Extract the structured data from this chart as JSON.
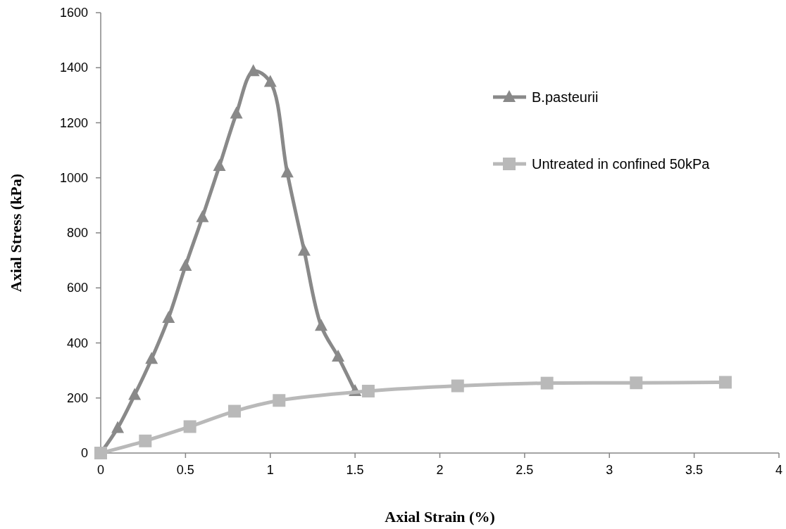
{
  "chart_data": {
    "type": "line",
    "xlabel": "Axial Strain (%)",
    "ylabel": "Axial Stress (kPa)",
    "xlim": [
      0,
      4
    ],
    "xticks": [
      0,
      0.5,
      1,
      1.5,
      2,
      2.5,
      3,
      3.5,
      4
    ],
    "ylim": [
      0,
      1600
    ],
    "yticks": [
      0,
      200,
      400,
      600,
      800,
      1000,
      1200,
      1400,
      1600
    ],
    "grid": false,
    "legend": "top right",
    "series": [
      {
        "name": "B.pasteurii",
        "color": "#898989",
        "marker": "triangle",
        "x": [
          0,
          0.1,
          0.2,
          0.3,
          0.4,
          0.5,
          0.6,
          0.7,
          0.8,
          0.9,
          1,
          1.1,
          1.2,
          1.3,
          1.4,
          1.5
        ],
        "values": [
          0,
          91,
          211,
          342,
          491,
          680,
          857,
          1043,
          1233,
          1387,
          1348,
          1019,
          735,
          462,
          350,
          225
        ]
      },
      {
        "name": "Untreated in confined 50kPa",
        "color": "#b9b9b9",
        "marker": "square",
        "x": [
          0,
          0.263,
          0.526,
          0.789,
          1.052,
          1.578,
          2.105,
          2.632,
          3.158,
          3.684
        ],
        "values": [
          0,
          44,
          96,
          152,
          191,
          225,
          244,
          254,
          255,
          257
        ]
      }
    ]
  }
}
